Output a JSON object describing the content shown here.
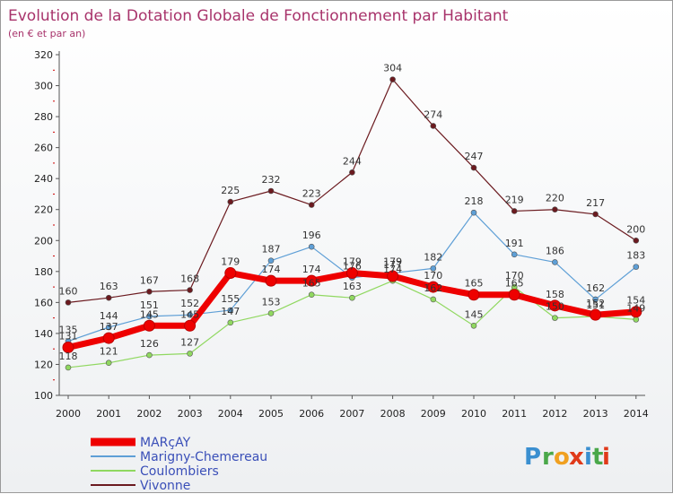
{
  "chart_data": {
    "type": "line",
    "title": "Evolution de la Dotation Globale de Fonctionnement par Habitant",
    "subtitle": "(en € et par an)",
    "xlabel": "",
    "ylabel": "",
    "ylim": [
      100,
      320
    ],
    "yticks": [
      100,
      120,
      140,
      160,
      180,
      200,
      220,
      240,
      260,
      280,
      300,
      320
    ],
    "categories": [
      "2000",
      "2001",
      "2002",
      "2003",
      "2004",
      "2005",
      "2006",
      "2007",
      "2008",
      "2009",
      "2010",
      "2011",
      "2012",
      "2013",
      "2014"
    ],
    "grid": false,
    "legend_position": "bottom-left",
    "series": [
      {
        "name": "Vivonne",
        "color": "#6b1a1f",
        "values": [
          160,
          163,
          167,
          168,
          225,
          232,
          223,
          244,
          304,
          274,
          247,
          219,
          220,
          217,
          200
        ]
      },
      {
        "name": "Marigny-Chemereau",
        "color": "#5e9fd6",
        "values": [
          135,
          144,
          151,
          152,
          155,
          187,
          196,
          176,
          179,
          182,
          218,
          191,
          186,
          162,
          183
        ]
      },
      {
        "name": "Coulombiers",
        "color": "#90d860",
        "values": [
          118,
          121,
          126,
          127,
          147,
          153,
          165,
          163,
          174,
          162,
          145,
          170,
          150,
          151,
          149
        ]
      },
      {
        "name": "MARçAY",
        "color": "#ee0000",
        "values": [
          131,
          137,
          145,
          145,
          179,
          174,
          174,
          179,
          177,
          170,
          165,
          165,
          158,
          152,
          154
        ]
      }
    ],
    "legend_order": [
      "MARçAY",
      "Marigny-Chemereau",
      "Coulombiers",
      "Vivonne"
    ]
  },
  "brand": {
    "text": "Proxiti",
    "letters": [
      "P",
      "r",
      "o",
      "x",
      "i",
      "t",
      "i"
    ],
    "colors": [
      "#3a8fd0",
      "#4aa84a",
      "#f0a020",
      "#e03a1a",
      "#3a8fd0",
      "#4aa84a",
      "#e03a1a"
    ]
  }
}
